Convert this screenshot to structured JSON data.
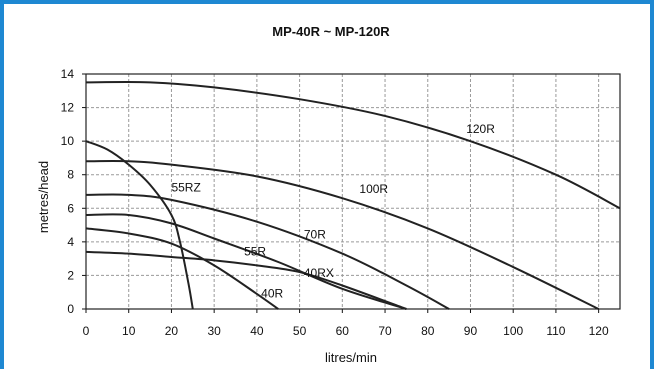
{
  "chart_data": {
    "type": "line",
    "title": "MP-40R ~ MP-120R",
    "xlabel": "litres/min",
    "ylabel": "metres/head",
    "xlim": [
      0,
      125
    ],
    "ylim": [
      0,
      14
    ],
    "xticks": [
      0,
      10,
      20,
      30,
      40,
      50,
      60,
      70,
      80,
      90,
      100,
      110,
      120
    ],
    "yticks": [
      0,
      2,
      4,
      6,
      8,
      10,
      12,
      14
    ],
    "grid": true,
    "series": [
      {
        "name": "120R",
        "x": [
          0,
          15,
          30,
          50,
          70,
          90,
          110,
          125
        ],
        "y": [
          13.5,
          13.5,
          13.2,
          12.5,
          11.5,
          10.0,
          8.0,
          6.0
        ]
      },
      {
        "name": "100R",
        "x": [
          0,
          10,
          20,
          40,
          60,
          80,
          100,
          120
        ],
        "y": [
          8.8,
          8.8,
          8.6,
          7.9,
          6.6,
          4.8,
          2.5,
          0
        ]
      },
      {
        "name": "70R",
        "x": [
          0,
          10,
          20,
          40,
          60,
          75,
          85
        ],
        "y": [
          6.8,
          6.8,
          6.5,
          5.2,
          3.3,
          1.4,
          0
        ]
      },
      {
        "name": "55R",
        "x": [
          0,
          10,
          20,
          30,
          45,
          60,
          75
        ],
        "y": [
          5.6,
          5.6,
          5.1,
          4.2,
          2.8,
          1.2,
          0
        ]
      },
      {
        "name": "40RX",
        "x": [
          0,
          10,
          20,
          30,
          40,
          50,
          60,
          75
        ],
        "y": [
          3.4,
          3.3,
          3.1,
          2.9,
          2.6,
          2.2,
          1.4,
          0
        ]
      },
      {
        "name": "40R",
        "x": [
          0,
          10,
          20,
          30,
          40,
          45
        ],
        "y": [
          4.8,
          4.5,
          3.9,
          2.6,
          0.9,
          0
        ]
      },
      {
        "name": "55RZ",
        "x": [
          0,
          5,
          10,
          15,
          20,
          22,
          24,
          25
        ],
        "y": [
          10.0,
          9.5,
          8.6,
          7.4,
          5.6,
          4.0,
          1.5,
          0
        ]
      }
    ]
  }
}
